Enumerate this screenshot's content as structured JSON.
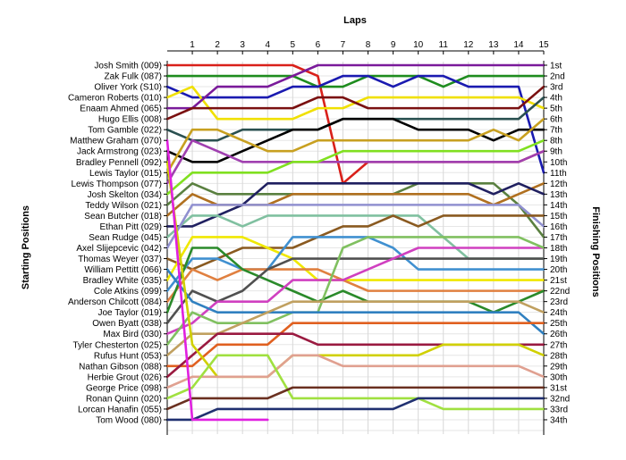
{
  "chart_data": {
    "type": "line",
    "title": "Laps",
    "ylabel_left": "Starting Positions",
    "ylabel_right": "Finishing Positions",
    "xlim": [
      0,
      15
    ],
    "ylim": [
      1,
      35
    ],
    "grid": true,
    "x_ticks": [
      1,
      2,
      3,
      4,
      5,
      6,
      7,
      8,
      9,
      10,
      11,
      12,
      13,
      14,
      15
    ],
    "start_labels": [
      "Josh Smith (009)",
      "Zak Fulk (087)",
      "Oliver York (S10)",
      "Cameron Roberts (010)",
      "Enaam Ahmed (065)",
      "Hugo Ellis (008)",
      "Tom Gamble (022)",
      "Matthew Graham (070)",
      "Jack Armstrong (023)",
      "Bradley Pennell (092)",
      "Lewis Taylor (015)",
      "Lewis Thompson (077)",
      "Josh Skelton (034)",
      "Teddy Wilson (021)",
      "Sean Butcher (018)",
      "Ethan Pitt (029)",
      "Sean Rudge (045)",
      "Axel Slijepcevic (042)",
      "Thomas Weyer (037)",
      "William Pettitt (066)",
      "Bradley White (035)",
      "Cole Atkins (099)",
      "Anderson Chilcott (084)",
      "Joe Taylor (019)",
      "Owen Byatt (038)",
      "Max Bird (030)",
      "Tyler Chesterton (025)",
      "Rufus Hunt (053)",
      "Nathan Gibson (088)",
      "Herbie Grout (026)",
      "George Price (098)",
      "Ronan Quinn (020)",
      "Lorcan Hanafin (055)",
      "Tom Wood (080)"
    ],
    "finish_labels": [
      "1st",
      "2nd",
      "3rd",
      "4th",
      "5th",
      "6th",
      "7th",
      "8th",
      "9th",
      "10th",
      "11th",
      "12th",
      "13th",
      "14th",
      "15th",
      "16th",
      "17th",
      "18th",
      "19th",
      "20th",
      "21st",
      "22nd",
      "23rd",
      "24th",
      "25th",
      "26th",
      "27th",
      "28th",
      "29th",
      "30th",
      "31st",
      "32nd",
      "33rd",
      "34th"
    ],
    "series": [
      {
        "color": "#d9201a",
        "values": [
          1,
          1,
          1,
          1,
          1,
          1,
          2,
          12,
          10,
          10,
          10,
          10,
          10,
          10,
          10,
          9
        ]
      },
      {
        "color": "#1e8c1e",
        "values": [
          2,
          2,
          2,
          2,
          2,
          2,
          3,
          3,
          2,
          2,
          2,
          3,
          2,
          2,
          2,
          2
        ]
      },
      {
        "color": "#1a1ab0",
        "values": [
          3,
          4,
          4,
          4,
          4,
          3,
          3,
          2,
          2,
          3,
          2,
          2,
          3,
          3,
          3,
          11
        ]
      },
      {
        "color": "#f0e000",
        "values": [
          4,
          3,
          6,
          6,
          6,
          6,
          5,
          5,
          4,
          4,
          4,
          4,
          4,
          4,
          4,
          5
        ]
      },
      {
        "color": "#7a1a9a",
        "values": [
          5,
          5,
          3,
          3,
          3,
          2,
          1,
          1,
          1,
          1,
          1,
          1,
          1,
          1,
          1,
          1
        ]
      },
      {
        "color": "#7a1010",
        "values": [
          6,
          5,
          5,
          5,
          5,
          5,
          4,
          4,
          5,
          5,
          5,
          5,
          5,
          5,
          5,
          3
        ]
      },
      {
        "color": "#2a5050",
        "values": [
          7,
          8,
          8,
          7,
          7,
          7,
          7,
          6,
          6,
          6,
          6,
          6,
          6,
          6,
          6,
          4
        ]
      },
      {
        "color": "#000000",
        "values": [
          9,
          10,
          10,
          9,
          8,
          7,
          7,
          6,
          6,
          6,
          7,
          7,
          7,
          8,
          7,
          7
        ]
      },
      {
        "color": "#c8a020",
        "values": [
          11,
          7,
          7,
          8,
          9,
          9,
          8,
          8,
          8,
          8,
          8,
          8,
          8,
          7,
          8,
          6
        ]
      },
      {
        "color": "#a040b0",
        "values": [
          12,
          8,
          9,
          10,
          10,
          10,
          10,
          10,
          10,
          10,
          10,
          10,
          10,
          10,
          10,
          9
        ]
      },
      {
        "color": "#80e020",
        "values": [
          13,
          11,
          11,
          11,
          11,
          10,
          10,
          9,
          9,
          9,
          9,
          9,
          9,
          9,
          9,
          8
        ]
      },
      {
        "color": "#5a8040",
        "values": [
          14,
          12,
          13,
          13,
          13,
          13,
          13,
          13,
          13,
          13,
          12,
          12,
          12,
          12,
          14,
          17
        ]
      },
      {
        "color": "#b07020",
        "values": [
          15,
          13,
          14,
          14,
          14,
          13,
          13,
          13,
          13,
          13,
          13,
          13,
          13,
          14,
          13,
          12
        ]
      },
      {
        "color": "#202060",
        "values": [
          16,
          16,
          15,
          14,
          12,
          12,
          12,
          12,
          12,
          12,
          12,
          12,
          12,
          13,
          12,
          13
        ]
      },
      {
        "color": "#80c0a0",
        "values": [
          17,
          15,
          15,
          16,
          15,
          15,
          15,
          15,
          15,
          15,
          15,
          17,
          19,
          19,
          19,
          19
        ]
      },
      {
        "color": "#9090d0",
        "values": [
          18,
          14,
          14,
          14,
          14,
          14,
          14,
          14,
          14,
          14,
          14,
          14,
          14,
          14,
          14,
          16
        ]
      },
      {
        "color": "#8a5a20",
        "values": [
          19,
          20,
          19,
          18,
          18,
          18,
          17,
          16,
          16,
          15,
          16,
          15,
          15,
          15,
          15,
          15
        ]
      },
      {
        "color": "#f0e800",
        "values": [
          21,
          17,
          17,
          17,
          18,
          19,
          21,
          21,
          21,
          21,
          21,
          21,
          21,
          21,
          21,
          21
        ]
      },
      {
        "color": "#4090d0",
        "values": [
          22,
          19,
          19,
          20,
          20,
          17,
          17,
          17,
          17,
          18,
          20,
          20,
          20,
          20,
          20,
          20
        ]
      },
      {
        "color": "#e08040",
        "values": [
          23,
          20,
          21,
          20,
          20,
          20,
          20,
          21,
          22,
          22,
          22,
          22,
          22,
          22,
          22,
          22
        ]
      },
      {
        "color": "#2a8a2a",
        "values": [
          24,
          18,
          18,
          20,
          21,
          22,
          23,
          22,
          23,
          23,
          23,
          23,
          23,
          24,
          23,
          22
        ]
      },
      {
        "color": "#505050",
        "values": [
          25,
          22,
          23,
          22,
          20,
          19,
          19,
          19,
          19,
          19,
          19,
          19,
          19,
          19,
          19,
          19
        ]
      },
      {
        "color": "#d040c0",
        "values": [
          26,
          25,
          23,
          23,
          23,
          21,
          21,
          21,
          20,
          19,
          18,
          18,
          18,
          18,
          18,
          18
        ]
      },
      {
        "color": "#80c060",
        "values": [
          27,
          24,
          25,
          25,
          25,
          24,
          24,
          18,
          17,
          17,
          17,
          17,
          17,
          17,
          17,
          18
        ]
      },
      {
        "color": "#3080c0",
        "values": [
          20,
          23,
          24,
          24,
          24,
          24,
          24,
          24,
          24,
          24,
          24,
          24,
          24,
          24,
          24,
          26
        ]
      },
      {
        "color": "#c0a060",
        "values": [
          28,
          26,
          26,
          25,
          24,
          23,
          23,
          23,
          23,
          23,
          23,
          23,
          23,
          23,
          23,
          24
        ]
      },
      {
        "color": "#e06020",
        "values": [
          29,
          29,
          27,
          27,
          27,
          25,
          25,
          25,
          25,
          25,
          25,
          25,
          25,
          25,
          25,
          25
        ]
      },
      {
        "color": "#9a1a40",
        "values": [
          30,
          28,
          26,
          26,
          26,
          26,
          27,
          27,
          27,
          27,
          27,
          27,
          27,
          27,
          27,
          27
        ]
      },
      {
        "color": "#d0d000",
        "values": [
          10,
          27,
          30,
          30,
          30,
          28,
          28,
          28,
          28,
          28,
          28,
          27,
          27,
          27,
          27,
          28
        ]
      },
      {
        "color": "#e0a090",
        "values": [
          31,
          30,
          30,
          30,
          30,
          28,
          28,
          29,
          29,
          29,
          29,
          29,
          29,
          29,
          29,
          30
        ]
      },
      {
        "color": "#a0e040",
        "values": [
          32,
          31,
          28,
          28,
          28,
          32,
          32,
          32,
          32,
          32,
          32,
          33,
          33,
          33,
          33,
          33
        ]
      },
      {
        "color": "#6a3020",
        "values": [
          33,
          32,
          32,
          32,
          32,
          31,
          31,
          31,
          31,
          31,
          31,
          31,
          31,
          31,
          31,
          31
        ]
      },
      {
        "color": "#203070",
        "values": [
          34,
          34,
          33,
          33,
          33,
          33,
          33,
          33,
          33,
          33,
          32,
          32,
          32,
          32,
          32,
          32
        ]
      },
      {
        "color": "#e020e0",
        "values": [
          8,
          34,
          34,
          34,
          34
        ]
      }
    ]
  }
}
